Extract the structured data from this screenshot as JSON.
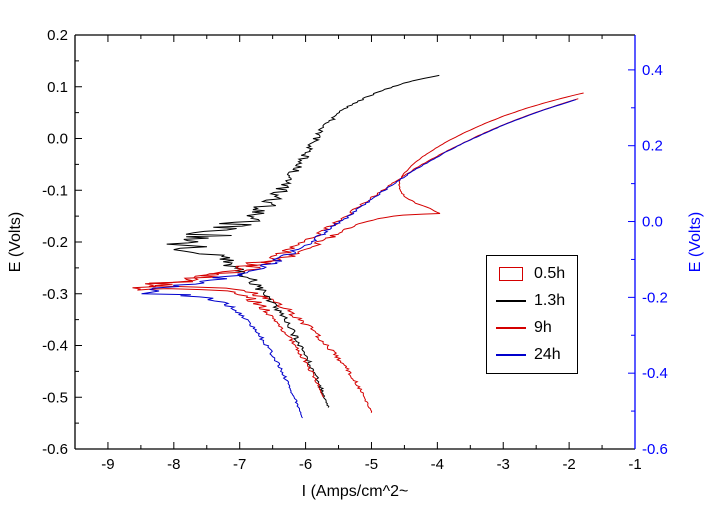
{
  "figure": {
    "background": "#ffffff"
  },
  "chart_data": {
    "type": "line",
    "title": "",
    "xlabel": "I (Amps/cm^2~",
    "grid": false,
    "x_axis": {
      "range": [
        -9.5,
        -1.0
      ],
      "ticks": [
        -9,
        -8,
        -7,
        -6,
        -5,
        -4,
        -3,
        -2,
        -1
      ],
      "minor_step": 0.5
    },
    "left_axis": {
      "label": "E (Volts)",
      "color": "#000000",
      "range": [
        -0.6,
        0.2
      ],
      "ticks": [
        0.2,
        0.1,
        0.0,
        -0.1,
        -0.2,
        -0.3,
        -0.4,
        -0.5,
        -0.6
      ],
      "minor_step": 0.05
    },
    "right_axis": {
      "label": "E (Volts)",
      "color": "#0000ff",
      "range": [
        -0.6,
        0.492
      ],
      "ticks": [
        0.4,
        0.2,
        0.0,
        -0.2,
        -0.4,
        -0.6
      ],
      "minor_step": 0.1
    },
    "legend": {
      "position": "middle-right",
      "entries": [
        "0.5h",
        "1.3h",
        "9h",
        "24h"
      ]
    },
    "series": [
      {
        "name": "0.5h",
        "color": "#d40000",
        "marker": "box",
        "points": [
          [
            -5.0,
            -0.53,
            0.01
          ],
          [
            -5.06,
            -0.512,
            0.02
          ],
          [
            -5.14,
            -0.492,
            0.02
          ],
          [
            -5.24,
            -0.47,
            0.03
          ],
          [
            -5.36,
            -0.448,
            0.03
          ],
          [
            -5.5,
            -0.425,
            0.04
          ],
          [
            -5.66,
            -0.402,
            0.04
          ],
          [
            -5.84,
            -0.378,
            0.05
          ],
          [
            -6.03,
            -0.355,
            0.06
          ],
          [
            -6.25,
            -0.333,
            0.07
          ],
          [
            -6.5,
            -0.313,
            0.09
          ],
          [
            -6.78,
            -0.299,
            0.12
          ],
          [
            -7.12,
            -0.291,
            0.22
          ],
          [
            -7.52,
            -0.287,
            0.32
          ],
          [
            -7.98,
            -0.285,
            0.35
          ],
          [
            -8.42,
            -0.286,
            0.18
          ],
          [
            -8.22,
            -0.278,
            0.32
          ],
          [
            -7.88,
            -0.272,
            0.38
          ],
          [
            -7.52,
            -0.266,
            0.36
          ],
          [
            -7.2,
            -0.259,
            0.3
          ],
          [
            -6.92,
            -0.252,
            0.25
          ],
          [
            -6.66,
            -0.244,
            0.2
          ],
          [
            -6.43,
            -0.235,
            0.16
          ],
          [
            -6.21,
            -0.225,
            0.13
          ],
          [
            -6.01,
            -0.214,
            0.1
          ],
          [
            -5.81,
            -0.202,
            0.08
          ],
          [
            -5.61,
            -0.19,
            0.07
          ],
          [
            -5.41,
            -0.178,
            0.06
          ],
          [
            -5.21,
            -0.167,
            0.05
          ],
          [
            -5.01,
            -0.158,
            0.04
          ],
          [
            -4.79,
            -0.152,
            0.03
          ],
          [
            -4.52,
            -0.148,
            0.02
          ],
          [
            -4.22,
            -0.146,
            0.015
          ],
          [
            -3.96,
            -0.145,
            0.008
          ],
          [
            -4.12,
            -0.135,
            0.012
          ],
          [
            -4.33,
            -0.125,
            0.015
          ],
          [
            -4.49,
            -0.113,
            0.015
          ],
          [
            -4.57,
            -0.099,
            0.01
          ],
          [
            -4.58,
            -0.085,
            0.008
          ],
          [
            -4.51,
            -0.068,
            0.008
          ],
          [
            -4.38,
            -0.051,
            0.008
          ],
          [
            -4.22,
            -0.035,
            0.006
          ],
          [
            -4.03,
            -0.019,
            0.006
          ],
          [
            -3.81,
            -0.003,
            0.005
          ],
          [
            -3.56,
            0.013,
            0.005
          ],
          [
            -3.28,
            0.029,
            0.004
          ],
          [
            -2.98,
            0.044,
            0.004
          ],
          [
            -2.66,
            0.058,
            0.003
          ],
          [
            -2.34,
            0.07,
            0.003
          ],
          [
            -2.04,
            0.08,
            0.002
          ],
          [
            -1.78,
            0.088,
            0.002
          ]
        ]
      },
      {
        "name": "1.3h",
        "color": "#000000",
        "marker": "line",
        "points": [
          [
            -5.65,
            -0.52,
            0.015
          ],
          [
            -5.71,
            -0.5,
            0.02
          ],
          [
            -5.78,
            -0.478,
            0.03
          ],
          [
            -5.86,
            -0.455,
            0.03
          ],
          [
            -5.95,
            -0.431,
            0.04
          ],
          [
            -6.05,
            -0.407,
            0.04
          ],
          [
            -6.16,
            -0.382,
            0.05
          ],
          [
            -6.28,
            -0.357,
            0.05
          ],
          [
            -6.42,
            -0.331,
            0.06
          ],
          [
            -6.58,
            -0.306,
            0.07
          ],
          [
            -6.76,
            -0.281,
            0.09
          ],
          [
            -6.97,
            -0.258,
            0.12
          ],
          [
            -7.21,
            -0.238,
            0.17
          ],
          [
            -7.48,
            -0.223,
            0.26
          ],
          [
            -7.76,
            -0.212,
            0.34
          ],
          [
            -7.94,
            -0.204,
            0.3
          ],
          [
            -7.73,
            -0.195,
            0.42
          ],
          [
            -7.47,
            -0.185,
            0.44
          ],
          [
            -7.2,
            -0.174,
            0.36
          ],
          [
            -6.97,
            -0.162,
            0.28
          ],
          [
            -6.79,
            -0.149,
            0.22
          ],
          [
            -6.65,
            -0.135,
            0.18
          ],
          [
            -6.52,
            -0.119,
            0.14
          ],
          [
            -6.4,
            -0.102,
            0.12
          ],
          [
            -6.29,
            -0.084,
            0.1
          ],
          [
            -6.18,
            -0.065,
            0.08
          ],
          [
            -6.07,
            -0.045,
            0.07
          ],
          [
            -5.97,
            -0.025,
            0.06
          ],
          [
            -5.87,
            -0.005,
            0.06
          ],
          [
            -5.77,
            0.014,
            0.05
          ],
          [
            -5.65,
            0.032,
            0.05
          ],
          [
            -5.51,
            0.048,
            0.04
          ],
          [
            -5.34,
            0.062,
            0.04
          ],
          [
            -5.15,
            0.075,
            0.03
          ],
          [
            -4.94,
            0.087,
            0.03
          ],
          [
            -4.72,
            0.098,
            0.02
          ],
          [
            -4.5,
            0.107,
            0.02
          ],
          [
            -4.28,
            0.114,
            0.015
          ],
          [
            -4.08,
            0.119,
            0.01
          ],
          [
            -3.97,
            0.122,
            0.005
          ]
        ]
      },
      {
        "name": "9h",
        "color": "#d40000",
        "marker": "line",
        "points": [
          [
            -5.72,
            -0.5,
            0.015
          ],
          [
            -5.79,
            -0.48,
            0.02
          ],
          [
            -5.88,
            -0.458,
            0.03
          ],
          [
            -5.98,
            -0.436,
            0.03
          ],
          [
            -6.09,
            -0.413,
            0.04
          ],
          [
            -6.21,
            -0.39,
            0.04
          ],
          [
            -6.35,
            -0.367,
            0.05
          ],
          [
            -6.5,
            -0.345,
            0.06
          ],
          [
            -6.67,
            -0.324,
            0.08
          ],
          [
            -6.87,
            -0.307,
            0.11
          ],
          [
            -7.12,
            -0.297,
            0.18
          ],
          [
            -7.45,
            -0.292,
            0.28
          ],
          [
            -7.85,
            -0.29,
            0.34
          ],
          [
            -8.25,
            -0.291,
            0.28
          ],
          [
            -8.58,
            -0.293,
            0.1
          ],
          [
            -8.36,
            -0.284,
            0.28
          ],
          [
            -8.04,
            -0.277,
            0.34
          ],
          [
            -7.72,
            -0.27,
            0.34
          ],
          [
            -7.42,
            -0.263,
            0.3
          ],
          [
            -7.15,
            -0.255,
            0.25
          ],
          [
            -6.9,
            -0.247,
            0.2
          ],
          [
            -6.68,
            -0.238,
            0.16
          ],
          [
            -6.47,
            -0.228,
            0.13
          ],
          [
            -6.27,
            -0.217,
            0.1
          ],
          [
            -6.08,
            -0.205,
            0.08
          ],
          [
            -5.9,
            -0.192,
            0.07
          ],
          [
            -5.72,
            -0.178,
            0.06
          ],
          [
            -5.54,
            -0.163,
            0.05
          ],
          [
            -5.36,
            -0.147,
            0.04
          ],
          [
            -5.17,
            -0.13,
            0.035
          ],
          [
            -4.98,
            -0.113,
            0.03
          ],
          [
            -4.79,
            -0.096,
            0.025
          ],
          [
            -4.59,
            -0.079,
            0.02
          ],
          [
            -4.38,
            -0.062,
            0.015
          ],
          [
            -4.16,
            -0.045,
            0.012
          ],
          [
            -3.93,
            -0.029,
            0.01
          ],
          [
            -3.68,
            -0.013,
            0.008
          ],
          [
            -3.42,
            0.003,
            0.008
          ],
          [
            -3.14,
            0.019,
            0.006
          ],
          [
            -2.85,
            0.034,
            0.005
          ],
          [
            -2.56,
            0.048,
            0.005
          ],
          [
            -2.28,
            0.06,
            0.004
          ],
          [
            -2.04,
            0.07,
            0.003
          ],
          [
            -1.86,
            0.077,
            0.002
          ]
        ]
      },
      {
        "name": "24h",
        "color": "#0000cc",
        "marker": "line",
        "points": [
          [
            -6.05,
            -0.54,
            0.01
          ],
          [
            -6.1,
            -0.522,
            0.015
          ],
          [
            -6.17,
            -0.5,
            0.02
          ],
          [
            -6.26,
            -0.476,
            0.025
          ],
          [
            -6.36,
            -0.45,
            0.03
          ],
          [
            -6.47,
            -0.424,
            0.03
          ],
          [
            -6.6,
            -0.398,
            0.035
          ],
          [
            -6.74,
            -0.372,
            0.04
          ],
          [
            -6.9,
            -0.348,
            0.05
          ],
          [
            -7.08,
            -0.328,
            0.07
          ],
          [
            -7.3,
            -0.314,
            0.12
          ],
          [
            -7.6,
            -0.306,
            0.2
          ],
          [
            -7.95,
            -0.302,
            0.28
          ],
          [
            -8.3,
            -0.3,
            0.28
          ],
          [
            -8.55,
            -0.3,
            0.12
          ],
          [
            -8.32,
            -0.292,
            0.28
          ],
          [
            -8.0,
            -0.286,
            0.3
          ],
          [
            -7.65,
            -0.279,
            0.28
          ],
          [
            -7.32,
            -0.271,
            0.24
          ],
          [
            -7.02,
            -0.262,
            0.19
          ],
          [
            -6.75,
            -0.251,
            0.15
          ],
          [
            -6.5,
            -0.239,
            0.12
          ],
          [
            -6.27,
            -0.225,
            0.09
          ],
          [
            -6.05,
            -0.209,
            0.07
          ],
          [
            -5.83,
            -0.192,
            0.06
          ],
          [
            -5.61,
            -0.173,
            0.05
          ],
          [
            -5.39,
            -0.153,
            0.04
          ],
          [
            -5.16,
            -0.132,
            0.03
          ],
          [
            -4.92,
            -0.11,
            0.025
          ],
          [
            -4.67,
            -0.088,
            0.02
          ],
          [
            -4.41,
            -0.066,
            0.015
          ],
          [
            -4.13,
            -0.045,
            0.012
          ],
          [
            -3.84,
            -0.024,
            0.01
          ],
          [
            -3.54,
            -0.005,
            0.008
          ],
          [
            -3.23,
            0.013,
            0.006
          ],
          [
            -2.92,
            0.03,
            0.005
          ],
          [
            -2.61,
            0.045,
            0.005
          ],
          [
            -2.32,
            0.058,
            0.004
          ],
          [
            -2.07,
            0.068,
            0.003
          ],
          [
            -1.9,
            0.075,
            0.002
          ]
        ]
      }
    ]
  }
}
